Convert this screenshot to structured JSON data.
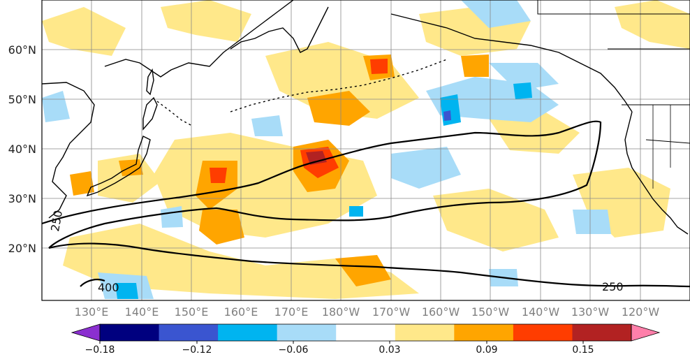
{
  "map": {
    "lat_labels": [
      "60°N",
      "50°N",
      "40°N",
      "30°N",
      "20°N"
    ],
    "lon_labels": [
      "130°E",
      "140°E",
      "150°E",
      "160°E",
      "170°E",
      "180°W",
      "170°W",
      "160°W",
      "150°W",
      "140°W",
      "130°W",
      "120°W"
    ],
    "contour_labels": [
      "250",
      "400",
      "250"
    ]
  },
  "colorbar": {
    "colors": [
      "#8b2fd0",
      "#00007f",
      "#3a55d0",
      "#00b4f0",
      "#a8dcf8",
      "#ffffff",
      "#ffe88a",
      "#ffa500",
      "#ff3d00",
      "#b22222",
      "#ff7faa"
    ],
    "tick_labels": [
      "−0.18",
      "−0.12",
      "−0.06",
      "0.03",
      "0.09",
      "0.15"
    ],
    "extend": "both"
  },
  "anomaly_colors": {
    "positive_weak": "#ffe88a",
    "positive_mid": "#ffa500",
    "positive_strong": "#ff3d00",
    "positive_max": "#b22222",
    "negative_weak": "#a8dcf8",
    "negative_mid": "#00b4f0",
    "negative_strong": "#3a55d0"
  }
}
